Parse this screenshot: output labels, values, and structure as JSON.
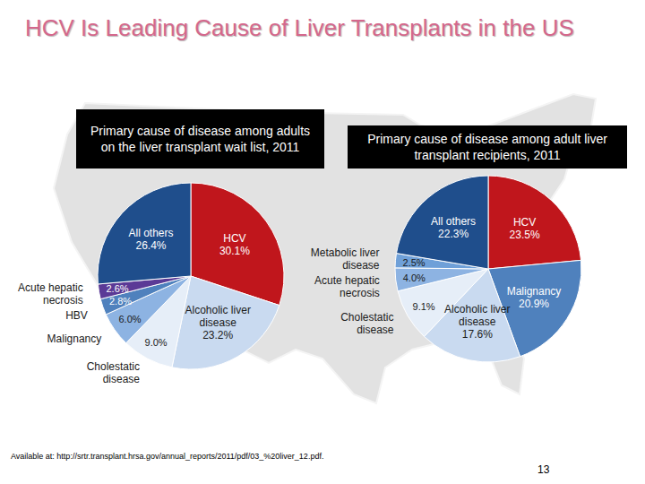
{
  "header": {
    "title": "HCV Is Leading Cause of Liver Transplants in the US"
  },
  "chart_data": [
    {
      "type": "pie",
      "title": "Primary cause of disease among adults on the liver transplant wait list, 2011",
      "categories": [
        "HCV",
        "Alcoholic liver disease",
        "Cholestatic disease",
        "Malignancy",
        "HBV",
        "Acute hepatic necrosis",
        "All others"
      ],
      "values": [
        30.1,
        23.2,
        9.0,
        6.0,
        2.8,
        2.6,
        26.4
      ],
      "value_labels": [
        "30.1%",
        "23.2%",
        "9.0%",
        "6.0%",
        "2.8%",
        "2.6%",
        "26.4%"
      ],
      "colors": [
        "#c0161c",
        "#c9daf0",
        "#e6eef8",
        "#8db3e2",
        "#4f81bd",
        "#5b3a96",
        "#1f4e8c"
      ],
      "data_labels": true
    },
    {
      "type": "pie",
      "title": "Primary cause of disease among adult liver transplant recipients, 2011",
      "categories": [
        "HCV",
        "Malignancy",
        "Alcoholic liver disease",
        "Cholestatic disease",
        "Acute hepatic necrosis",
        "Metabolic liver disease",
        "All others"
      ],
      "values": [
        23.5,
        20.9,
        17.6,
        9.1,
        4.0,
        2.5,
        22.3
      ],
      "value_labels": [
        "23.5%",
        "20.9%",
        "17.6%",
        "9.1%",
        "4.0%",
        "2.5%",
        "22.3%"
      ],
      "colors": [
        "#c0161c",
        "#4f81bd",
        "#c9daf0",
        "#e6eef8",
        "#8db3e2",
        "#6fa0d8",
        "#1f4e8c"
      ],
      "data_labels": true
    }
  ],
  "footer": {
    "source": "Available at: http://srtr.transplant.hrsa.gov/annual_reports/2011/pdf/03_%20liver_12.pdf.",
    "page_number": 13
  }
}
